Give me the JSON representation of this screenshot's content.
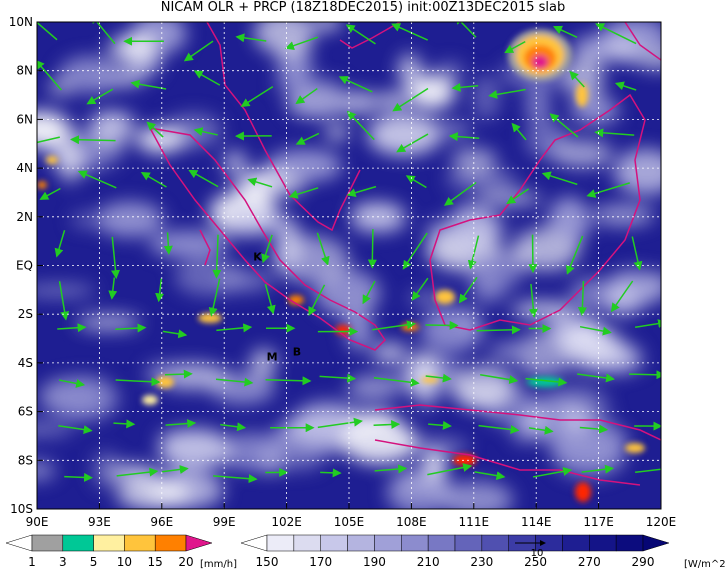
{
  "header": {
    "title": "NICAM OLR + PRCP (18Z18DEC2015) init:00Z13DEC2015 slab"
  },
  "map": {
    "lon_range": [
      {
        "value": 90,
        "label": "90E"
      },
      {
        "value": 120,
        "label": "120E"
      }
    ],
    "lat_range": [
      {
        "value": -10,
        "label": "10S"
      },
      {
        "value": 10,
        "label": "10N"
      }
    ],
    "lon_ticks": [
      {
        "value": 93,
        "label": "93E"
      },
      {
        "value": 96,
        "label": "96E"
      },
      {
        "value": 99,
        "label": "99E"
      },
      {
        "value": 102,
        "label": "102E"
      },
      {
        "value": 105,
        "label": "105E"
      },
      {
        "value": 108,
        "label": "108E"
      },
      {
        "value": 111,
        "label": "111E"
      },
      {
        "value": 114,
        "label": "114E"
      },
      {
        "value": 117,
        "label": "117E"
      }
    ],
    "lat_ticks": [
      {
        "value": 8,
        "label": "8N"
      },
      {
        "value": 6,
        "label": "6N"
      },
      {
        "value": 4,
        "label": "4N"
      },
      {
        "value": 2,
        "label": "2N"
      },
      {
        "value": 0,
        "label": "EQ"
      },
      {
        "value": -2,
        "label": "2S"
      },
      {
        "value": -4,
        "label": "4S"
      },
      {
        "value": -6,
        "label": "6S"
      },
      {
        "value": -8,
        "label": "8S"
      }
    ],
    "places": [
      {
        "label": "K",
        "lon": 100.6,
        "lat": 0.2
      },
      {
        "label": "M",
        "lon": 101.3,
        "lat": -3.9
      },
      {
        "label": "B",
        "lon": 102.5,
        "lat": -3.7
      }
    ]
  },
  "legend": {
    "precip": {
      "ticks": [
        1,
        3,
        5,
        10,
        15,
        20
      ],
      "unit": "[mm/h]",
      "colors": [
        "#ffffff",
        "#a0a0a0",
        "#00c896",
        "#fff0a0",
        "#ffc43c",
        "#ff8000",
        "#e0168c"
      ]
    },
    "olr": {
      "ticks": [
        150,
        170,
        190,
        210,
        230,
        250,
        270,
        290
      ],
      "unit": "[W/m^2]",
      "colors": [
        "#ffffff",
        "#ececf8",
        "#dcdcf0",
        "#c8c8ea",
        "#b4b4e0",
        "#a0a0d8",
        "#8c8cce",
        "#7878c4",
        "#6464ba",
        "#5050b0",
        "#3c3ca6",
        "#2c2c9c",
        "#1e1e92",
        "#141488",
        "#0c0c7e",
        "#060674"
      ]
    },
    "vector_ref": 10
  }
}
